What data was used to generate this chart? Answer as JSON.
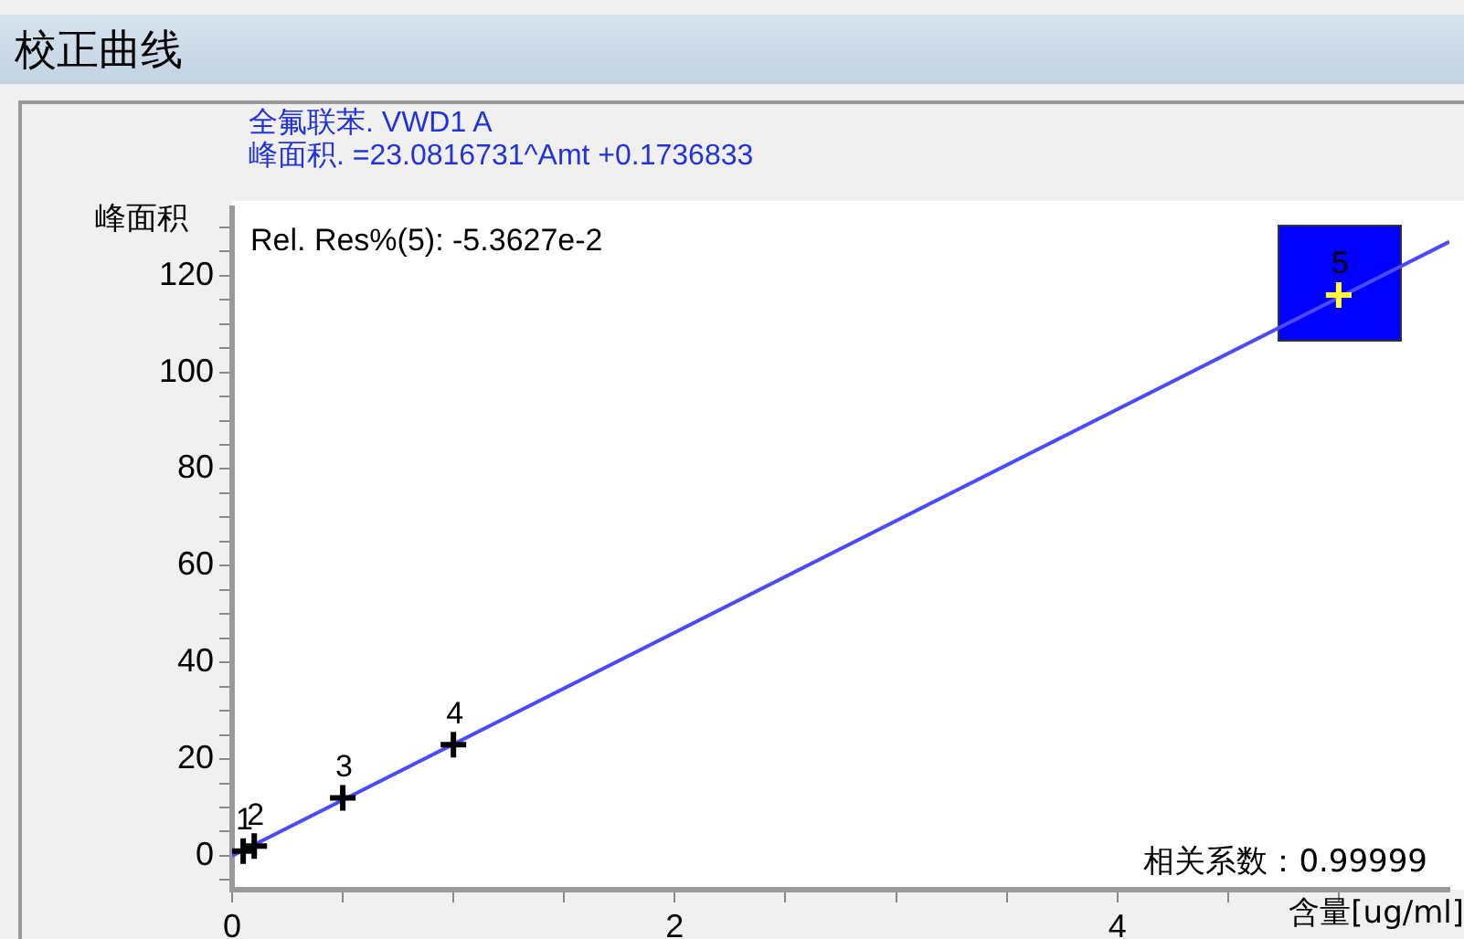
{
  "chart_data": {
    "type": "scatter",
    "title": "校正曲线",
    "subtitle": "全氟联苯. VWD1 A\n峰面积. =23.0816731^Amt +0.1736833",
    "xlabel": "含量[ug/ml]",
    "ylabel": "峰面积",
    "series": [
      {
        "type": "line",
        "x": [
          0,
          5.5
        ],
        "values": [
          0,
          127
        ],
        "color": "#4a4aff",
        "marker": "none"
      },
      {
        "x": [
          0.05,
          0.1,
          0.5,
          1,
          5
        ],
        "values": [
          1,
          2,
          12,
          23,
          116
        ],
        "colors": [
          "#000000",
          "#000000",
          "#000000",
          "#000000",
          "#ffff33"
        ],
        "marker": "cross"
      }
    ],
    "annotations": [
      "Rel. Res%(5): -5.3627e-2",
      "相关系数：0.99999",
      {
        "text": "1",
        "x": 0.05,
        "y": 1
      },
      {
        "text": "2",
        "x": 0.1,
        "y": 2
      },
      {
        "text": "3",
        "x": 0.5,
        "y": 12
      },
      {
        "text": "4",
        "x": 1,
        "y": 23
      },
      {
        "text": "5",
        "x": 5,
        "y": 116
      }
    ],
    "xlim": [
      0,
      5.5
    ],
    "ylim": [
      -7,
      134
    ],
    "xticks": [
      0,
      {
        "value": 0.5,
        "label": null
      },
      {
        "value": 1,
        "label": null
      },
      {
        "value": 1.5,
        "label": null
      },
      2,
      {
        "value": 2.5,
        "label": null
      },
      {
        "value": 3,
        "label": null
      },
      {
        "value": 3.5,
        "label": null
      },
      4,
      {
        "value": 4.5,
        "label": null
      },
      {
        "value": 5,
        "label": null
      }
    ],
    "yticks": [
      {
        "value": -5,
        "label": null
      },
      0,
      {
        "value": 5,
        "label": null
      },
      {
        "value": 10,
        "label": null
      },
      {
        "value": 15,
        "label": null
      },
      20,
      {
        "value": 25,
        "label": null
      },
      {
        "value": 30,
        "label": null
      },
      {
        "value": 35,
        "label": null
      },
      40,
      {
        "value": 45,
        "label": null
      },
      {
        "value": 50,
        "label": null
      },
      {
        "value": 55,
        "label": null
      },
      60,
      {
        "value": 65,
        "label": null
      },
      {
        "value": 70,
        "label": null
      },
      {
        "value": 75,
        "label": null
      },
      80,
      {
        "value": 85,
        "label": null
      },
      {
        "value": 90,
        "label": null
      },
      {
        "value": 95,
        "label": null
      },
      100,
      {
        "value": 105,
        "label": null
      },
      {
        "value": 110,
        "label": null
      },
      {
        "value": 115,
        "label": null
      },
      120,
      {
        "value": 125,
        "label": null
      },
      {
        "value": 130,
        "label": null
      }
    ],
    "grid": false,
    "legend": false
  }
}
